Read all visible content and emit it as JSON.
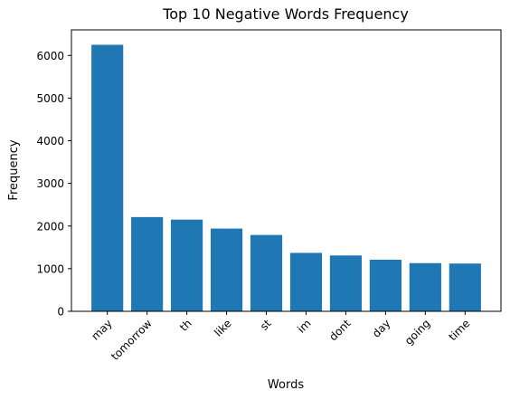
{
  "chart_data": {
    "type": "bar",
    "title": "Top 10 Negative Words Frequency",
    "xlabel": "Words",
    "ylabel": "Frequency",
    "categories": [
      "may",
      "tomorrow",
      "th",
      "like",
      "st",
      "im",
      "dont",
      "day",
      "going",
      "time"
    ],
    "values": [
      6250,
      2210,
      2150,
      1940,
      1790,
      1370,
      1310,
      1210,
      1130,
      1120
    ],
    "ylim": [
      0,
      6600
    ],
    "yticks": [
      0,
      1000,
      2000,
      3000,
      4000,
      5000,
      6000
    ],
    "ytick_labels": [
      "0",
      "1000",
      "2000",
      "3000",
      "4000",
      "5000",
      "6000"
    ],
    "bar_color": "#1f77b4",
    "grid": false,
    "legend": "none"
  }
}
